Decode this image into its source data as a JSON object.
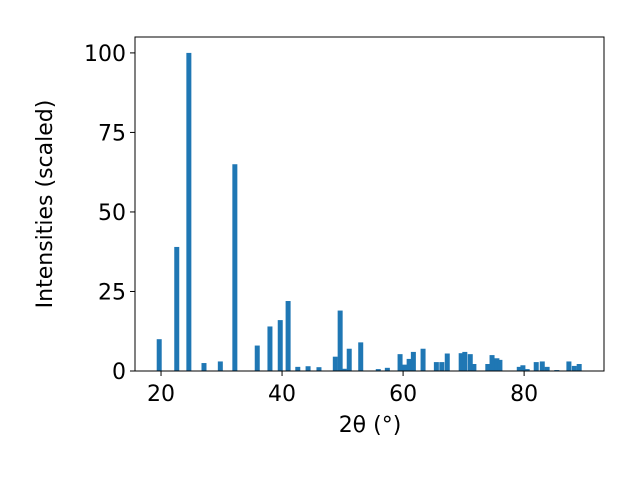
{
  "chart_data": {
    "type": "bar",
    "xlabel": "2θ (°)",
    "ylabel": "Intensities (scaled)",
    "color": "#1f77b4",
    "x": [
      19.7,
      22.6,
      24.6,
      27.1,
      29.8,
      32.2,
      35.9,
      38.0,
      39.7,
      41.0,
      42.6,
      44.3,
      46.1,
      48.8,
      49.6,
      50.3,
      51.1,
      53.0,
      55.9,
      57.4,
      59.5,
      60.3,
      61.0,
      61.7,
      63.3,
      65.5,
      66.4,
      67.3,
      69.6,
      70.2,
      71.1,
      71.7,
      74.0,
      74.7,
      75.5,
      76.0,
      79.2,
      79.8,
      80.5,
      82.0,
      83.0,
      83.8,
      85.4,
      87.4,
      88.3,
      89.1
    ],
    "values": [
      10,
      39,
      100,
      2.5,
      3,
      65,
      8,
      14,
      16,
      22,
      1.3,
      1.5,
      1.2,
      4.5,
      19,
      0.7,
      7,
      9,
      0.6,
      1,
      5.3,
      2,
      3.8,
      6,
      7,
      2.8,
      2.8,
      5.5,
      5.6,
      6,
      5.3,
      2.2,
      2.2,
      5,
      4,
      3.5,
      1.3,
      1.8,
      0.6,
      2.8,
      3,
      1.3,
      0.3,
      3,
      1.6,
      2.2
    ],
    "xlim": [
      15.7,
      93.2
    ],
    "ylim": [
      0,
      105
    ],
    "xticks": [
      20,
      40,
      60,
      80
    ],
    "yticks": [
      0,
      25,
      50,
      75,
      100
    ]
  }
}
